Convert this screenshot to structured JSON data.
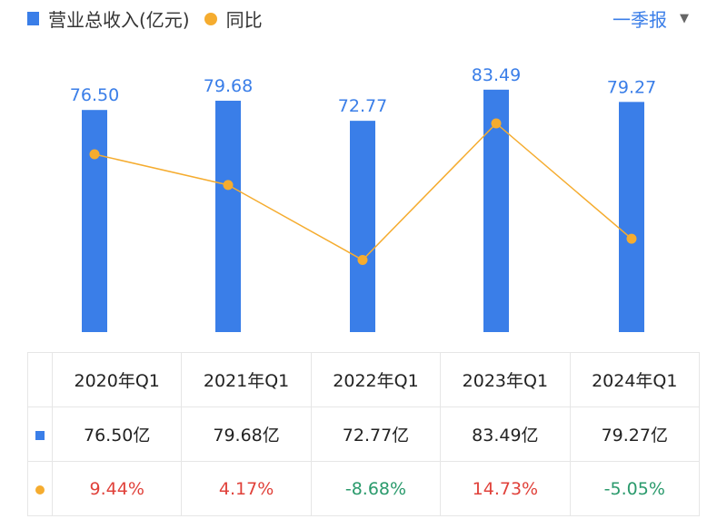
{
  "legend": {
    "revenue": "营业总收入(亿元)",
    "yoy": "同比"
  },
  "period_selector": {
    "label": "一季报",
    "icon": "triangle-down-icon"
  },
  "colors": {
    "bar": "#3a7ee8",
    "line": "#f5ac2f",
    "up": "#e0413a",
    "down": "#2a9a6c"
  },
  "chart_data": {
    "type": "bar+line",
    "categories": [
      "2020年Q1",
      "2021年Q1",
      "2022年Q1",
      "2023年Q1",
      "2024年Q1"
    ],
    "series": [
      {
        "name": "营业总收入(亿元)",
        "type": "bar",
        "values": [
          76.5,
          79.68,
          72.77,
          83.49,
          79.27
        ],
        "labels": [
          "76.50",
          "79.68",
          "72.77",
          "83.49",
          "79.27"
        ]
      },
      {
        "name": "同比",
        "type": "line",
        "values": [
          9.44,
          4.17,
          -8.68,
          14.73,
          -5.05
        ]
      }
    ]
  },
  "table": {
    "headers": [
      "2020年Q1",
      "2021年Q1",
      "2022年Q1",
      "2023年Q1",
      "2024年Q1"
    ],
    "revenue": [
      "76.50亿",
      "79.68亿",
      "72.77亿",
      "83.49亿",
      "79.27亿"
    ],
    "yoy": [
      "9.44%",
      "4.17%",
      "-8.68%",
      "14.73%",
      "-5.05%"
    ]
  }
}
